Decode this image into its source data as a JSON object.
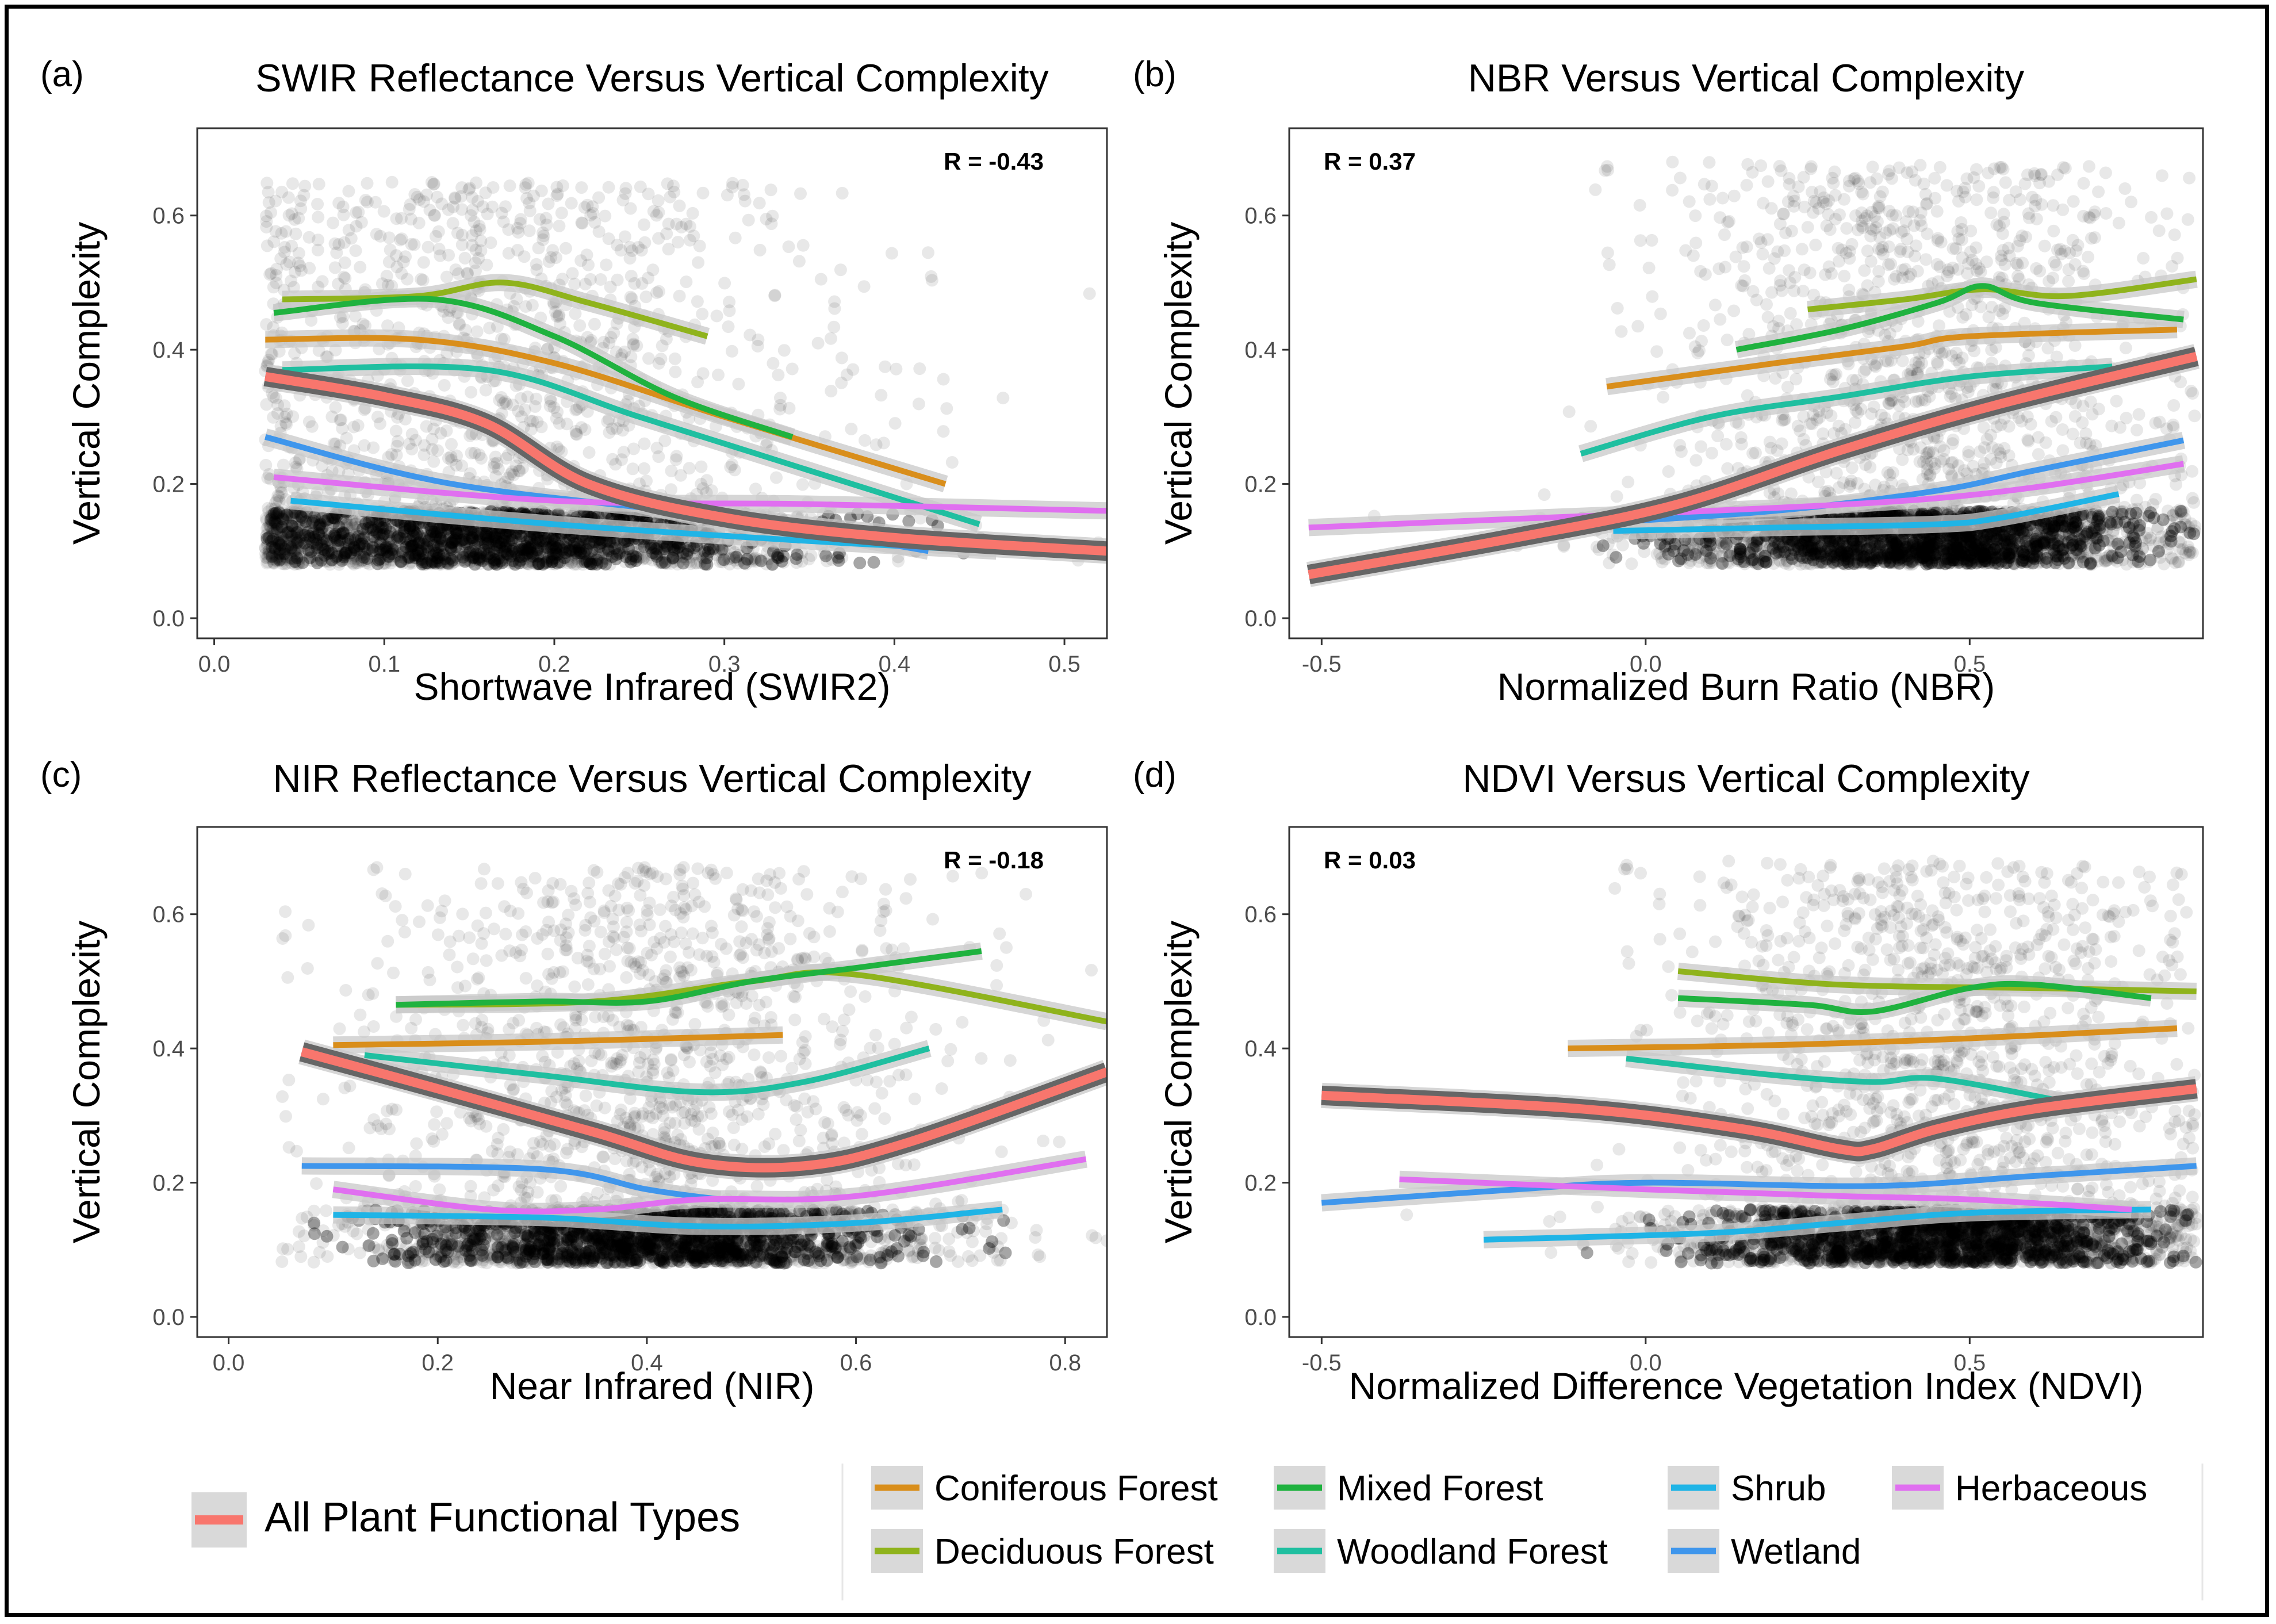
{
  "figure": {
    "legend": {
      "overall": {
        "label": "All Plant Functional Types",
        "color": "#f8766d"
      },
      "items": [
        {
          "key": "conif",
          "label": "Coniferous Forest",
          "color": "#d98e1b"
        },
        {
          "key": "mixed",
          "label": "Mixed Forest",
          "color": "#1fb23f"
        },
        {
          "key": "shrub",
          "label": "Shrub",
          "color": "#1fb4e6"
        },
        {
          "key": "herb",
          "label": "Herbaceous",
          "color": "#e06ff0"
        },
        {
          "key": "decid",
          "label": "Deciduous Forest",
          "color": "#8fb31c"
        },
        {
          "key": "wood",
          "label": "Woodland Forest",
          "color": "#1fbfa0"
        },
        {
          "key": "wet",
          "label": "Wetland",
          "color": "#3f96ec"
        }
      ]
    }
  },
  "chart_data": [
    {
      "panel": "(a)",
      "type": "scatter",
      "title": "SWIR Reflectance Versus Vertical Complexity",
      "xlabel": "Shortwave Infrared (SWIR2)",
      "ylabel": "Vertical Complexity",
      "xlim": [
        -0.01,
        0.525
      ],
      "ylim": [
        -0.03,
        0.73
      ],
      "xticks": [
        0.0,
        0.1,
        0.2,
        0.3,
        0.4,
        0.5
      ],
      "xtick_labels": [
        "0.0",
        "0.1",
        "0.2",
        "0.3",
        "0.4",
        "0.5"
      ],
      "yticks": [
        0.0,
        0.2,
        0.4,
        0.6
      ],
      "ytick_labels": [
        "0.0",
        "0.2",
        "0.4",
        "0.6"
      ],
      "annotation": "R = -0.43",
      "annotation_position": "top-right",
      "scatter_cloud": {
        "x_center": 0.16,
        "x_spread": 0.11,
        "y_dense": [
          0.08,
          0.16
        ],
        "y_spread_top": 0.65,
        "x_min": 0.03,
        "x_max": 0.52
      },
      "series": [
        {
          "name": "All Plant Functional Types",
          "key": "all",
          "x": [
            0.03,
            0.1,
            0.16,
            0.22,
            0.3,
            0.4,
            0.525
          ],
          "y": [
            0.36,
            0.33,
            0.29,
            0.2,
            0.15,
            0.12,
            0.1
          ]
        },
        {
          "name": "Coniferous Forest",
          "key": "conif",
          "x": [
            0.03,
            0.12,
            0.2,
            0.3,
            0.43
          ],
          "y": [
            0.415,
            0.415,
            0.38,
            0.3,
            0.2
          ]
        },
        {
          "name": "Deciduous Forest",
          "key": "decid",
          "x": [
            0.04,
            0.12,
            0.17,
            0.22,
            0.29
          ],
          "y": [
            0.475,
            0.48,
            0.5,
            0.47,
            0.42
          ]
        },
        {
          "name": "Mixed Forest",
          "key": "mixed",
          "x": [
            0.035,
            0.13,
            0.2,
            0.27,
            0.34
          ],
          "y": [
            0.455,
            0.475,
            0.42,
            0.33,
            0.27
          ]
        },
        {
          "name": "Woodland Forest",
          "key": "wood",
          "x": [
            0.04,
            0.16,
            0.25,
            0.35,
            0.45
          ],
          "y": [
            0.37,
            0.37,
            0.3,
            0.22,
            0.14
          ]
        },
        {
          "name": "Shrub",
          "key": "shrub",
          "x": [
            0.045,
            0.2,
            0.35,
            0.46
          ],
          "y": [
            0.175,
            0.14,
            0.115,
            0.1
          ]
        },
        {
          "name": "Wetland",
          "key": "wet",
          "x": [
            0.03,
            0.14,
            0.3,
            0.42
          ],
          "y": [
            0.27,
            0.2,
            0.15,
            0.1
          ]
        },
        {
          "name": "Herbaceous",
          "key": "herb",
          "x": [
            0.035,
            0.2,
            0.35,
            0.525
          ],
          "y": [
            0.21,
            0.175,
            0.17,
            0.16
          ]
        }
      ]
    },
    {
      "panel": "(b)",
      "type": "scatter",
      "title": "NBR Versus Vertical Complexity",
      "xlabel": "Normalized Burn Ratio (NBR)",
      "ylabel": "Vertical Complexity",
      "xlim": [
        -0.55,
        0.86
      ],
      "ylim": [
        -0.03,
        0.73
      ],
      "xticks": [
        -0.5,
        0.0,
        0.5
      ],
      "xtick_labels": [
        "-0.5",
        "0.0",
        "0.5"
      ],
      "yticks": [
        0.0,
        0.2,
        0.4,
        0.6
      ],
      "ytick_labels": [
        "0.0",
        "0.2",
        "0.4",
        "0.6"
      ],
      "annotation": "R = 0.37",
      "annotation_position": "top-left",
      "scatter_cloud": {
        "x_center": 0.42,
        "x_spread": 0.22,
        "y_dense": [
          0.08,
          0.16
        ],
        "y_spread_top": 0.68,
        "x_min": -0.45,
        "x_max": 0.85
      },
      "series": [
        {
          "name": "All Plant Functional Types",
          "key": "all",
          "x": [
            -0.52,
            -0.2,
            0.05,
            0.3,
            0.55,
            0.85
          ],
          "y": [
            0.065,
            0.12,
            0.17,
            0.25,
            0.32,
            0.39
          ]
        },
        {
          "name": "Coniferous Forest",
          "key": "conif",
          "x": [
            -0.06,
            0.2,
            0.4,
            0.5,
            0.82
          ],
          "y": [
            0.345,
            0.38,
            0.405,
            0.42,
            0.43
          ]
        },
        {
          "name": "Deciduous Forest",
          "key": "decid",
          "x": [
            0.25,
            0.4,
            0.52,
            0.65,
            0.85
          ],
          "y": [
            0.46,
            0.475,
            0.49,
            0.48,
            0.505
          ]
        },
        {
          "name": "Mixed Forest",
          "key": "mixed",
          "x": [
            0.14,
            0.3,
            0.45,
            0.52,
            0.6,
            0.83
          ],
          "y": [
            0.4,
            0.43,
            0.47,
            0.495,
            0.47,
            0.445
          ]
        },
        {
          "name": "Woodland Forest",
          "key": "wood",
          "x": [
            -0.1,
            0.1,
            0.3,
            0.5,
            0.72
          ],
          "y": [
            0.245,
            0.3,
            0.33,
            0.36,
            0.375
          ]
        },
        {
          "name": "Shrub",
          "key": "shrub",
          "x": [
            -0.05,
            0.2,
            0.45,
            0.55,
            0.73
          ],
          "y": [
            0.13,
            0.135,
            0.14,
            0.15,
            0.185
          ]
        },
        {
          "name": "Wetland",
          "key": "wet",
          "x": [
            -0.1,
            0.2,
            0.45,
            0.6,
            0.83
          ],
          "y": [
            0.14,
            0.16,
            0.19,
            0.22,
            0.265
          ]
        },
        {
          "name": "Herbaceous",
          "key": "herb",
          "x": [
            -0.52,
            -0.2,
            0.1,
            0.4,
            0.6,
            0.83
          ],
          "y": [
            0.135,
            0.148,
            0.16,
            0.175,
            0.195,
            0.23
          ]
        }
      ]
    },
    {
      "panel": "(c)",
      "type": "scatter",
      "title": "NIR Reflectance Versus Vertical Complexity",
      "xlabel": "Near Infrared (NIR)",
      "ylabel": "Vertical Complexity",
      "xlim": [
        -0.03,
        0.84
      ],
      "ylim": [
        -0.03,
        0.73
      ],
      "xticks": [
        0.0,
        0.2,
        0.4,
        0.6,
        0.8
      ],
      "xtick_labels": [
        "0.0",
        "0.2",
        "0.4",
        "0.6",
        "0.8"
      ],
      "yticks": [
        0.0,
        0.2,
        0.4,
        0.6
      ],
      "ytick_labels": [
        "0.0",
        "0.2",
        "0.4",
        "0.6"
      ],
      "annotation": "R = -0.18",
      "annotation_position": "top-right",
      "scatter_cloud": {
        "x_center": 0.4,
        "x_spread": 0.15,
        "y_dense": [
          0.08,
          0.16
        ],
        "y_spread_top": 0.67,
        "x_min": 0.05,
        "x_max": 0.84
      },
      "series": [
        {
          "name": "All Plant Functional Types",
          "key": "all",
          "x": [
            0.07,
            0.2,
            0.35,
            0.45,
            0.55,
            0.65,
            0.84
          ],
          "y": [
            0.395,
            0.34,
            0.275,
            0.23,
            0.225,
            0.26,
            0.365
          ]
        },
        {
          "name": "Coniferous Forest",
          "key": "conif",
          "x": [
            0.1,
            0.3,
            0.53
          ],
          "y": [
            0.405,
            0.41,
            0.42
          ]
        },
        {
          "name": "Deciduous Forest",
          "key": "decid",
          "x": [
            0.16,
            0.35,
            0.5,
            0.6,
            0.84
          ],
          "y": [
            0.465,
            0.47,
            0.5,
            0.51,
            0.44
          ]
        },
        {
          "name": "Mixed Forest",
          "key": "mixed",
          "x": [
            0.16,
            0.3,
            0.4,
            0.5,
            0.6,
            0.72
          ],
          "y": [
            0.465,
            0.47,
            0.47,
            0.5,
            0.52,
            0.545
          ]
        },
        {
          "name": "Woodland Forest",
          "key": "wood",
          "x": [
            0.13,
            0.3,
            0.45,
            0.55,
            0.67
          ],
          "y": [
            0.39,
            0.36,
            0.335,
            0.35,
            0.4
          ]
        },
        {
          "name": "Shrub",
          "key": "shrub",
          "x": [
            0.1,
            0.3,
            0.45,
            0.6,
            0.74
          ],
          "y": [
            0.152,
            0.148,
            0.135,
            0.14,
            0.16
          ]
        },
        {
          "name": "Wetland",
          "key": "wet",
          "x": [
            0.07,
            0.3,
            0.4,
            0.47
          ],
          "y": [
            0.225,
            0.22,
            0.19,
            0.175
          ]
        },
        {
          "name": "Herbaceous",
          "key": "herb",
          "x": [
            0.1,
            0.25,
            0.35,
            0.45,
            0.6,
            0.82
          ],
          "y": [
            0.19,
            0.16,
            0.16,
            0.175,
            0.18,
            0.235
          ]
        }
      ]
    },
    {
      "panel": "(d)",
      "type": "scatter",
      "title": "NDVI Versus Vertical Complexity",
      "xlabel": "Normalized Difference Vegetation Index (NDVI)",
      "ylabel": "Vertical Complexity",
      "xlim": [
        -0.55,
        0.86
      ],
      "ylim": [
        -0.03,
        0.73
      ],
      "xticks": [
        -0.5,
        0.0,
        0.5
      ],
      "xtick_labels": [
        "-0.5",
        "0.0",
        "0.5"
      ],
      "yticks": [
        0.0,
        0.2,
        0.4,
        0.6
      ],
      "ytick_labels": [
        "0.0",
        "0.2",
        "0.4",
        "0.6"
      ],
      "annotation": "R = 0.03",
      "annotation_position": "top-left",
      "scatter_cloud": {
        "x_center": 0.45,
        "x_spread": 0.22,
        "y_dense": [
          0.08,
          0.16
        ],
        "y_spread_top": 0.68,
        "x_min": -0.4,
        "x_max": 0.85
      },
      "series": [
        {
          "name": "All Plant Functional Types",
          "key": "all",
          "x": [
            -0.5,
            -0.1,
            0.15,
            0.3,
            0.35,
            0.45,
            0.6,
            0.85
          ],
          "y": [
            0.33,
            0.31,
            0.28,
            0.25,
            0.25,
            0.28,
            0.31,
            0.34
          ]
        },
        {
          "name": "Coniferous Forest",
          "key": "conif",
          "x": [
            -0.12,
            0.2,
            0.5,
            0.82
          ],
          "y": [
            0.4,
            0.405,
            0.415,
            0.43
          ]
        },
        {
          "name": "Deciduous Forest",
          "key": "decid",
          "x": [
            0.05,
            0.3,
            0.6,
            0.85
          ],
          "y": [
            0.515,
            0.495,
            0.49,
            0.485
          ]
        },
        {
          "name": "Mixed Forest",
          "key": "mixed",
          "x": [
            0.05,
            0.25,
            0.35,
            0.5,
            0.6,
            0.78
          ],
          "y": [
            0.475,
            0.465,
            0.455,
            0.49,
            0.495,
            0.475
          ]
        },
        {
          "name": "Woodland Forest",
          "key": "wood",
          "x": [
            -0.03,
            0.2,
            0.35,
            0.45,
            0.65
          ],
          "y": [
            0.385,
            0.36,
            0.35,
            0.355,
            0.32
          ]
        },
        {
          "name": "Shrub",
          "key": "shrub",
          "x": [
            -0.25,
            0.1,
            0.3,
            0.5,
            0.78
          ],
          "y": [
            0.115,
            0.125,
            0.14,
            0.155,
            0.16
          ]
        },
        {
          "name": "Wetland",
          "key": "wet",
          "x": [
            -0.5,
            -0.2,
            0.0,
            0.35,
            0.6,
            0.85
          ],
          "y": [
            0.17,
            0.19,
            0.2,
            0.195,
            0.21,
            0.225
          ]
        },
        {
          "name": "Herbaceous",
          "key": "herb",
          "x": [
            -0.38,
            0.0,
            0.3,
            0.5,
            0.75
          ],
          "y": [
            0.205,
            0.19,
            0.18,
            0.175,
            0.16
          ]
        }
      ]
    }
  ]
}
